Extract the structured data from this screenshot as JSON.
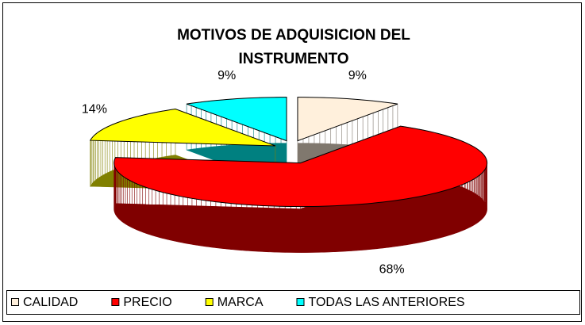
{
  "chart_data": {
    "type": "pie3d",
    "title": [
      "MOTIVOS DE ADQUISICION DEL",
      "INSTRUMENTO"
    ],
    "categories": [
      "CALIDAD",
      "PRECIO",
      "MARCA",
      "TODAS LAS ANTERIORES"
    ],
    "values": [
      9,
      68,
      14,
      9
    ],
    "value_labels": [
      "9%",
      "68%",
      "14%",
      "9%"
    ],
    "colors": [
      "#FFF0DC",
      "#FF0000",
      "#FFFF00",
      "#00FFFF"
    ],
    "legend": "bottom"
  }
}
